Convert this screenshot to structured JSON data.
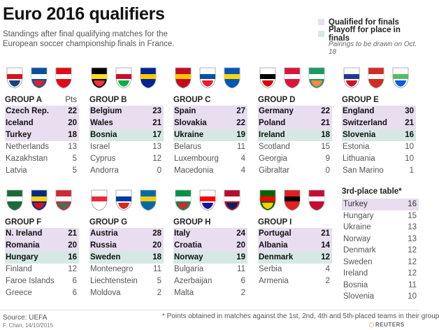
{
  "header": {
    "title": "Euro 2016 qualifiers",
    "subtitle": "Standings after final qualifying matches for the European soccer championship finals in France."
  },
  "legend": {
    "qualified_label": "Qualified for finals",
    "playoff_label": "Playoff for place in finals",
    "note": "Pairings to be drawn on Oct. 18",
    "qualified_color": "#e8def0",
    "playoff_color": "#d6e8e3"
  },
  "pts_header": "Pts",
  "groups": [
    {
      "label": "GROUP A",
      "flags": [
        "czech-crest-icon",
        "iceland-crest-icon",
        "turkey-crest-icon"
      ],
      "teams": [
        {
          "name": "Czech Rep.",
          "pts": "22",
          "status": "q"
        },
        {
          "name": "Iceland",
          "pts": "20",
          "status": "q"
        },
        {
          "name": "Turkey",
          "pts": "18",
          "status": "q"
        },
        {
          "name": "Netherlands",
          "pts": "13",
          "status": "n"
        },
        {
          "name": "Kazakhstan",
          "pts": "5",
          "status": "n"
        },
        {
          "name": "Latvia",
          "pts": "5",
          "status": "n"
        }
      ]
    },
    {
      "label": "GROUP B",
      "flags": [
        "belgium-crest-icon",
        "wales-crest-icon",
        "bosnia-crest-icon"
      ],
      "teams": [
        {
          "name": "Belgium",
          "pts": "23",
          "status": "q"
        },
        {
          "name": "Wales",
          "pts": "21",
          "status": "q"
        },
        {
          "name": "Bosnia",
          "pts": "17",
          "status": "p"
        },
        {
          "name": "Israel",
          "pts": "13",
          "status": "n"
        },
        {
          "name": "Cyprus",
          "pts": "12",
          "status": "n"
        },
        {
          "name": "Andorra",
          "pts": "0",
          "status": "n"
        }
      ]
    },
    {
      "label": "GROUP C",
      "flags": [
        "spain-crest-icon",
        "slovakia-crest-icon",
        "ukraine-crest-icon"
      ],
      "teams": [
        {
          "name": "Spain",
          "pts": "27",
          "status": "q"
        },
        {
          "name": "Slovakia",
          "pts": "22",
          "status": "q"
        },
        {
          "name": "Ukraine",
          "pts": "19",
          "status": "p"
        },
        {
          "name": "Belarus",
          "pts": "11",
          "status": "n"
        },
        {
          "name": "Luxembourg",
          "pts": "4",
          "status": "n"
        },
        {
          "name": "Macedonia",
          "pts": "4",
          "status": "n"
        }
      ]
    },
    {
      "label": "GROUP D",
      "flags": [
        "germany-crest-icon",
        "poland-crest-icon",
        "ireland-crest-icon"
      ],
      "teams": [
        {
          "name": "Germany",
          "pts": "22",
          "status": "q"
        },
        {
          "name": "Poland",
          "pts": "21",
          "status": "q"
        },
        {
          "name": "Ireland",
          "pts": "18",
          "status": "p"
        },
        {
          "name": "Scotland",
          "pts": "15",
          "status": "n"
        },
        {
          "name": "Georgia",
          "pts": "9",
          "status": "n"
        },
        {
          "name": "Gibraltar",
          "pts": "0",
          "status": "n"
        }
      ]
    },
    {
      "label": "GROUP E",
      "flags": [
        "england-crest-icon",
        "switzerland-crest-icon",
        "slovenia-crest-icon"
      ],
      "teams": [
        {
          "name": "England",
          "pts": "30",
          "status": "q"
        },
        {
          "name": "Switzerland",
          "pts": "21",
          "status": "q"
        },
        {
          "name": "Slovenia",
          "pts": "16",
          "status": "p"
        },
        {
          "name": "Estonia",
          "pts": "10",
          "status": "n"
        },
        {
          "name": "Lithuania",
          "pts": "10",
          "status": "n"
        },
        {
          "name": "San Marino",
          "pts": "1",
          "status": "n"
        }
      ]
    },
    {
      "label": "GROUP F",
      "flags": [
        "n-ireland-crest-icon",
        "romania-crest-icon",
        "hungary-crest-icon"
      ],
      "teams": [
        {
          "name": "N. Ireland",
          "pts": "21",
          "status": "q"
        },
        {
          "name": "Romania",
          "pts": "20",
          "status": "q"
        },
        {
          "name": "Hungary",
          "pts": "16",
          "status": "p"
        },
        {
          "name": "Finland",
          "pts": "12",
          "status": "n"
        },
        {
          "name": "Faroe Islands",
          "pts": "6",
          "status": "n"
        },
        {
          "name": "Greece",
          "pts": "6",
          "status": "n"
        }
      ]
    },
    {
      "label": "GROUP G",
      "flags": [
        "austria-crest-icon",
        "russia-crest-icon",
        "sweden-crest-icon"
      ],
      "teams": [
        {
          "name": "Austria",
          "pts": "28",
          "status": "q"
        },
        {
          "name": "Russia",
          "pts": "20",
          "status": "q"
        },
        {
          "name": "Sweden",
          "pts": "18",
          "status": "p"
        },
        {
          "name": "Montenegro",
          "pts": "11",
          "status": "n"
        },
        {
          "name": "Liechtenstein",
          "pts": "5",
          "status": "n"
        },
        {
          "name": "Moldova",
          "pts": "2",
          "status": "n"
        }
      ]
    },
    {
      "label": "GROUP H",
      "flags": [
        "italy-crest-icon",
        "croatia-crest-icon",
        "norway-crest-icon"
      ],
      "teams": [
        {
          "name": "Italy",
          "pts": "24",
          "status": "q"
        },
        {
          "name": "Croatia",
          "pts": "20",
          "status": "q"
        },
        {
          "name": "Norway",
          "pts": "19",
          "status": "p"
        },
        {
          "name": "Bulgaria",
          "pts": "11",
          "status": "n"
        },
        {
          "name": "Azerbaijan",
          "pts": "6",
          "status": "n"
        },
        {
          "name": "Malta",
          "pts": "2",
          "status": "n"
        }
      ]
    },
    {
      "label": "GROUP I",
      "flags": [
        "portugal-crest-icon",
        "albania-crest-icon",
        "denmark-crest-icon"
      ],
      "teams": [
        {
          "name": "Portugal",
          "pts": "21",
          "status": "q"
        },
        {
          "name": "Albania",
          "pts": "14",
          "status": "q"
        },
        {
          "name": "Denmark",
          "pts": "12",
          "status": "p"
        },
        {
          "name": "Serbia",
          "pts": "4",
          "status": "n"
        },
        {
          "name": "Armenia",
          "pts": "2",
          "status": "n"
        }
      ]
    }
  ],
  "third_place": {
    "title": "3rd-place table*",
    "rows": [
      {
        "name": "Turkey",
        "pts": "16"
      },
      {
        "name": "Hungary",
        "pts": "15"
      },
      {
        "name": "Ukraine",
        "pts": "13"
      },
      {
        "name": "Norway",
        "pts": "13"
      },
      {
        "name": "Denmark",
        "pts": "12"
      },
      {
        "name": "Sweden",
        "pts": "12"
      },
      {
        "name": "Ireland",
        "pts": "12"
      },
      {
        "name": "Bosnia",
        "pts": "11"
      },
      {
        "name": "Slovenia",
        "pts": "10"
      }
    ]
  },
  "footer": {
    "source": "Source: UEFA",
    "credit": "F. Chan, 14/10/2015",
    "footnote": "* Points obtained in matches against the 1st, 2nd, 4th and 5th-placed teams in their group",
    "brand": "REUTERS"
  }
}
